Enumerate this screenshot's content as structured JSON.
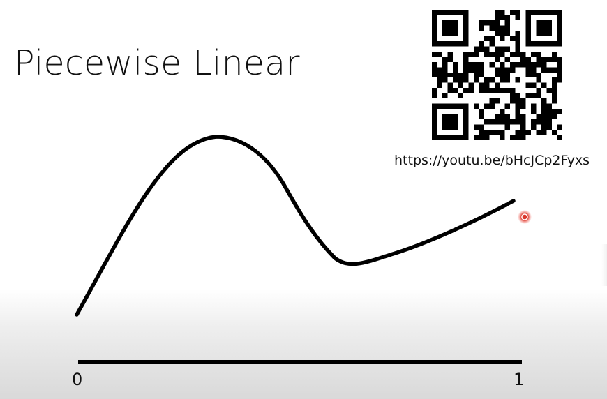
{
  "slide": {
    "title": "Piecewise Linear",
    "url": "https://youtu.be/bHcJCp2Fyxs",
    "axis": {
      "start_label": "0",
      "end_label": "1"
    }
  },
  "icons": {
    "qr": "qr-code-icon",
    "pointer": "laser-pointer-icon"
  },
  "colors": {
    "ink": "#000000",
    "pointer": "#d9362b"
  }
}
